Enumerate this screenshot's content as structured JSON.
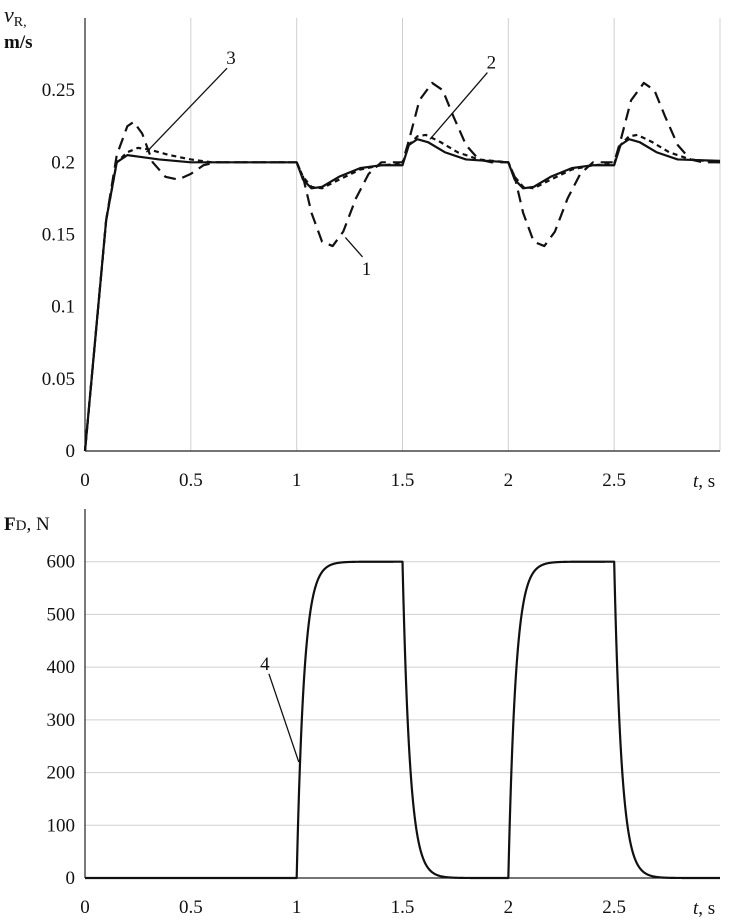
{
  "chart_data": [
    {
      "type": "line",
      "ylabel": "v",
      "ylabel_sub": "R,",
      "ylabel_unit": "m/s",
      "xlabel": "t",
      "xlabel_unit": ", s",
      "xlim": [
        0,
        3
      ],
      "ylim": [
        0,
        0.3
      ],
      "x_ticks": [
        "0",
        "0.5",
        "1",
        "1.5",
        "2",
        "2.5"
      ],
      "x_tick_values": [
        0,
        0.5,
        1,
        1.5,
        2,
        2.5
      ],
      "y_ticks": [
        "0",
        "0.05",
        "0.1",
        "0.15",
        "0.2",
        "0.25"
      ],
      "y_tick_values": [
        0,
        0.05,
        0.1,
        0.15,
        0.2,
        0.25
      ],
      "grid": "vertical",
      "series": [
        {
          "name": "1",
          "style": "long-dash",
          "points": [
            [
              0,
              0
            ],
            [
              0.05,
              0.08
            ],
            [
              0.1,
              0.16
            ],
            [
              0.15,
              0.205
            ],
            [
              0.2,
              0.225
            ],
            [
              0.23,
              0.228
            ],
            [
              0.27,
              0.22
            ],
            [
              0.32,
              0.2
            ],
            [
              0.38,
              0.19
            ],
            [
              0.44,
              0.188
            ],
            [
              0.5,
              0.192
            ],
            [
              0.56,
              0.198
            ],
            [
              0.62,
              0.2
            ],
            [
              1.0,
              0.2
            ],
            [
              1.03,
              0.19
            ],
            [
              1.07,
              0.165
            ],
            [
              1.12,
              0.145
            ],
            [
              1.17,
              0.142
            ],
            [
              1.22,
              0.152
            ],
            [
              1.28,
              0.175
            ],
            [
              1.34,
              0.192
            ],
            [
              1.4,
              0.2
            ],
            [
              1.5,
              0.2
            ],
            [
              1.53,
              0.215
            ],
            [
              1.58,
              0.243
            ],
            [
              1.64,
              0.255
            ],
            [
              1.69,
              0.25
            ],
            [
              1.74,
              0.232
            ],
            [
              1.8,
              0.212
            ],
            [
              1.86,
              0.202
            ],
            [
              1.92,
              0.2
            ],
            [
              2.0,
              0.2
            ],
            [
              2.03,
              0.19
            ],
            [
              2.07,
              0.165
            ],
            [
              2.12,
              0.145
            ],
            [
              2.17,
              0.142
            ],
            [
              2.22,
              0.152
            ],
            [
              2.28,
              0.175
            ],
            [
              2.34,
              0.192
            ],
            [
              2.4,
              0.2
            ],
            [
              2.5,
              0.2
            ],
            [
              2.53,
              0.215
            ],
            [
              2.58,
              0.243
            ],
            [
              2.64,
              0.255
            ],
            [
              2.69,
              0.25
            ],
            [
              2.74,
              0.232
            ],
            [
              2.8,
              0.212
            ],
            [
              2.86,
              0.202
            ],
            [
              2.92,
              0.2
            ],
            [
              3.0,
              0.2
            ]
          ]
        },
        {
          "name": "2",
          "style": "short-dash",
          "points": [
            [
              0,
              0
            ],
            [
              0.05,
              0.08
            ],
            [
              0.1,
              0.16
            ],
            [
              0.15,
              0.2
            ],
            [
              0.2,
              0.207
            ],
            [
              0.25,
              0.21
            ],
            [
              0.3,
              0.209
            ],
            [
              0.4,
              0.205
            ],
            [
              0.5,
              0.202
            ],
            [
              0.6,
              0.2
            ],
            [
              1.0,
              0.2
            ],
            [
              1.03,
              0.19
            ],
            [
              1.07,
              0.183
            ],
            [
              1.12,
              0.182
            ],
            [
              1.2,
              0.188
            ],
            [
              1.3,
              0.195
            ],
            [
              1.4,
              0.198
            ],
            [
              1.5,
              0.199
            ],
            [
              1.53,
              0.212
            ],
            [
              1.57,
              0.218
            ],
            [
              1.61,
              0.219
            ],
            [
              1.68,
              0.214
            ],
            [
              1.76,
              0.207
            ],
            [
              1.86,
              0.202
            ],
            [
              2.0,
              0.2
            ],
            [
              2.03,
              0.19
            ],
            [
              2.07,
              0.183
            ],
            [
              2.12,
              0.182
            ],
            [
              2.2,
              0.188
            ],
            [
              2.3,
              0.195
            ],
            [
              2.4,
              0.198
            ],
            [
              2.5,
              0.199
            ],
            [
              2.53,
              0.212
            ],
            [
              2.57,
              0.218
            ],
            [
              2.61,
              0.219
            ],
            [
              2.68,
              0.214
            ],
            [
              2.76,
              0.207
            ],
            [
              2.86,
              0.202
            ],
            [
              3.0,
              0.2
            ]
          ]
        },
        {
          "name": "3",
          "style": "solid",
          "points": [
            [
              0,
              0
            ],
            [
              0.05,
              0.08
            ],
            [
              0.1,
              0.16
            ],
            [
              0.15,
              0.2
            ],
            [
              0.2,
              0.205
            ],
            [
              0.25,
              0.204
            ],
            [
              0.35,
              0.202
            ],
            [
              0.5,
              0.2
            ],
            [
              1.0,
              0.2
            ],
            [
              1.03,
              0.188
            ],
            [
              1.07,
              0.182
            ],
            [
              1.12,
              0.183
            ],
            [
              1.2,
              0.19
            ],
            [
              1.3,
              0.196
            ],
            [
              1.4,
              0.198
            ],
            [
              1.5,
              0.198
            ],
            [
              1.53,
              0.212
            ],
            [
              1.57,
              0.216
            ],
            [
              1.62,
              0.214
            ],
            [
              1.7,
              0.207
            ],
            [
              1.8,
              0.202
            ],
            [
              2.0,
              0.2
            ],
            [
              2.03,
              0.188
            ],
            [
              2.07,
              0.182
            ],
            [
              2.12,
              0.183
            ],
            [
              2.2,
              0.19
            ],
            [
              2.3,
              0.196
            ],
            [
              2.4,
              0.198
            ],
            [
              2.5,
              0.198
            ],
            [
              2.53,
              0.212
            ],
            [
              2.57,
              0.216
            ],
            [
              2.62,
              0.214
            ],
            [
              2.7,
              0.207
            ],
            [
              2.8,
              0.202
            ],
            [
              3.0,
              0.201
            ]
          ]
        }
      ],
      "annotations": [
        {
          "label": "3",
          "text_at": [
            0.69,
            0.268
          ],
          "arrow_to": [
            0.29,
            0.207
          ]
        },
        {
          "label": "2",
          "text_at": [
            1.92,
            0.265
          ],
          "arrow_to": [
            1.63,
            0.216
          ]
        },
        {
          "label": "1",
          "text_at": [
            1.33,
            0.122
          ],
          "arrow_to": [
            1.23,
            0.148
          ]
        }
      ]
    },
    {
      "type": "line",
      "ylabel": "F",
      "ylabel_sub": "D",
      "ylabel_unit": ", N",
      "xlabel": "t",
      "xlabel_unit": ", s",
      "xlim": [
        0,
        3
      ],
      "ylim": [
        0,
        700
      ],
      "x_ticks": [
        "0",
        "0.5",
        "1",
        "1.5",
        "2",
        "2.5"
      ],
      "x_tick_values": [
        0,
        0.5,
        1,
        1.5,
        2,
        2.5
      ],
      "y_ticks": [
        "0",
        "100",
        "200",
        "300",
        "400",
        "500",
        "600"
      ],
      "y_tick_values": [
        0,
        100,
        200,
        300,
        400,
        500,
        600
      ],
      "grid": "horizontal",
      "series": [
        {
          "name": "4",
          "style": "solid",
          "amplitude": 600,
          "time_constant": 0.035,
          "pulses": [
            [
              1.0,
              1.5
            ],
            [
              2.0,
              2.5
            ]
          ],
          "x_end": 3.0
        }
      ],
      "annotations": [
        {
          "label": "4",
          "text_at": [
            0.85,
            395
          ],
          "arrow_to": [
            1.01,
            220
          ]
        }
      ]
    }
  ]
}
